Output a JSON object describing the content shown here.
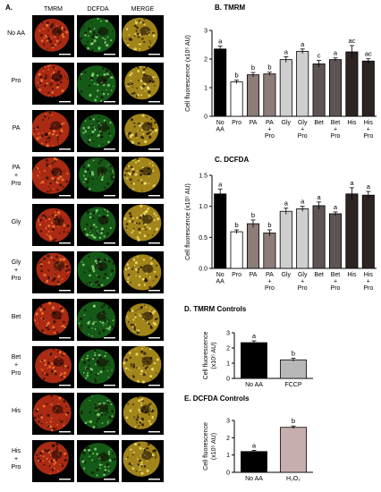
{
  "panel_a": {
    "label": "A.",
    "columns": [
      "TMRM",
      "DCFDA",
      "MERGE"
    ],
    "rows": [
      "No AA",
      "Pro",
      "PA",
      "PA + Pro",
      "Gly",
      "Gly + Pro",
      "Bet",
      "Bet + Pro",
      "His",
      "His + Pro"
    ],
    "colors": {
      "tmrm": "#d43418",
      "dcfda": "#27a32a",
      "merge": "#c9a521"
    }
  },
  "chart_data": [
    {
      "id": "B",
      "panel_label": "B. TMRM",
      "type": "bar",
      "ylabel": "Cell fluorescence (x10⁵ AU)",
      "ylim": [
        0,
        3
      ],
      "yticks": [
        "0",
        "1",
        "2",
        "3"
      ],
      "categories": [
        "No AA",
        "Pro",
        "PA",
        "PA + Pro",
        "Gly",
        "Gly + Pro",
        "Bet",
        "Bet + Pro",
        "His",
        "His + Pro"
      ],
      "values": [
        2.35,
        1.2,
        1.45,
        1.48,
        1.98,
        2.27,
        1.83,
        1.98,
        2.25,
        1.93
      ],
      "errors": [
        0.1,
        0.06,
        0.08,
        0.06,
        0.1,
        0.08,
        0.12,
        0.06,
        0.22,
        0.08
      ],
      "sig": [
        "a",
        "b",
        "b",
        "b",
        "a",
        "a",
        "c",
        "a",
        "ac",
        "ac"
      ],
      "fills": [
        "#000000",
        "#ffffff",
        "#8c7d79",
        "#8c7d79",
        "#cfcfcf",
        "#cfcfcf",
        "#5f5454",
        "#5f5454",
        "#2d2422",
        "#2d2422"
      ]
    },
    {
      "id": "C",
      "panel_label": "C. DCFDA",
      "type": "bar",
      "ylabel": "Cell fluorescence (x10⁵ AU)",
      "ylim": [
        0,
        1.5
      ],
      "yticks": [
        "0.0",
        "0.5",
        "1.0",
        "1.5"
      ],
      "categories": [
        "No AA",
        "Pro",
        "PA",
        "PA + Pro",
        "Gly",
        "Gly + Pro",
        "Bet",
        "Bet + Pro",
        "His",
        "His + Pro"
      ],
      "values": [
        1.2,
        0.59,
        0.72,
        0.57,
        0.92,
        0.96,
        1.01,
        0.88,
        1.2,
        1.18
      ],
      "errors": [
        0.08,
        0.03,
        0.06,
        0.05,
        0.05,
        0.04,
        0.06,
        0.03,
        0.1,
        0.06
      ],
      "sig": [
        "a",
        "b",
        "b",
        "b",
        "a",
        "a",
        "a",
        "a",
        "a",
        "a"
      ],
      "fills": [
        "#000000",
        "#ffffff",
        "#8c7d79",
        "#8c7d79",
        "#cfcfcf",
        "#cfcfcf",
        "#5f5454",
        "#5f5454",
        "#2d2422",
        "#2d2422"
      ]
    },
    {
      "id": "D",
      "panel_label": "D. TMRM Controls",
      "type": "bar",
      "ylabel": "Cell fluorescence (x10⁵ AU)",
      "ylim": [
        0,
        3
      ],
      "yticks": [
        "0",
        "1",
        "2",
        "3"
      ],
      "categories": [
        "No AA",
        "FCCP"
      ],
      "values": [
        2.35,
        1.22
      ],
      "errors": [
        0.12,
        0.1
      ],
      "sig": [
        "a",
        "b"
      ],
      "fills": [
        "#000000",
        "#b8b8b8"
      ]
    },
    {
      "id": "E",
      "panel_label": "E. DCFDA Controls",
      "type": "bar",
      "ylabel": "Cell fluorescence (x10⁵ AU)",
      "ylim": [
        0,
        3
      ],
      "yticks": [
        "0",
        "1",
        "2",
        "3"
      ],
      "categories": [
        "No AA",
        "H₂O₂"
      ],
      "values": [
        1.2,
        2.6
      ],
      "errors": [
        0.07,
        0.08
      ],
      "sig": [
        "a",
        "b"
      ],
      "fills": [
        "#000000",
        "#c6aeae"
      ]
    }
  ]
}
